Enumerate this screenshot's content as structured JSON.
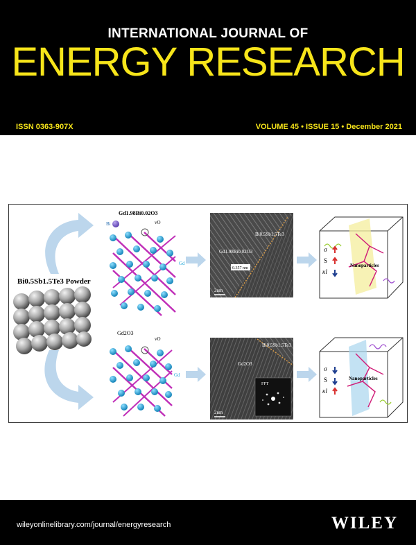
{
  "header": {
    "journal_line1": "INTERNATIONAL JOURNAL OF",
    "journal_line2": "ENERGY RESEARCH",
    "issn": "ISSN 0363-907X",
    "volume_issue": "VOLUME 45 • ISSUE 15 • December 2021"
  },
  "figure": {
    "powder_label": "Bi0.5Sb1.5Te3 Powder",
    "top_oxide_label": "Gd1.98Bi0.02O3",
    "bottom_oxide_label": "Gd2O3",
    "bi_label": "Bi",
    "vo_label": "vO",
    "gd_label": "Gd",
    "tem_top_matrix": "Bi0.5Sb1.5Te3",
    "tem_top_particle": "Gd1.98Bi0.02O3",
    "tem_top_dspacing": "0.357 nm",
    "tem_scale": "2nm",
    "tem_bottom_matrix": "Bi0.5Sb1.5Te3",
    "tem_bottom_particle": "Gd2O3",
    "fft_label": "FFT",
    "nanoparticles_label": "Nanoparticles",
    "sigma": "σ",
    "seebeck": "S",
    "kappa": "κl"
  },
  "footer": {
    "url": "wileyonlinelibrary.com/journal/energyresearch",
    "publisher": "WILEY"
  },
  "colors": {
    "header_bg": "#000000",
    "title_yellow": "#f7e51a",
    "atom_blue": "#1ea7d8",
    "bond_magenta": "#c02fb8",
    "arrow_light_blue": "#bcd6ec"
  }
}
